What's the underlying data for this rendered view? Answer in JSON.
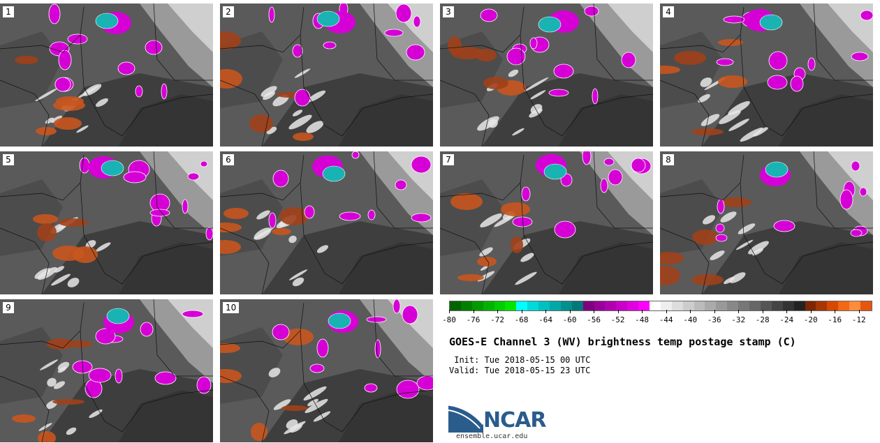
{
  "panels": [
    {
      "label": "1"
    },
    {
      "label": "2"
    },
    {
      "label": "3"
    },
    {
      "label": "4"
    },
    {
      "label": "5"
    },
    {
      "label": "6"
    },
    {
      "label": "7"
    },
    {
      "label": "8"
    },
    {
      "label": "9"
    },
    {
      "label": "10"
    }
  ],
  "colorbar": {
    "colors": [
      "#006400",
      "#007f00",
      "#009900",
      "#00b300",
      "#00cc00",
      "#00e500",
      "#00ffff",
      "#00dada",
      "#00c0c0",
      "#00a8a8",
      "#009090",
      "#007878",
      "#800080",
      "#990099",
      "#b000b0",
      "#c800c8",
      "#e000e0",
      "#ff00ff",
      "#ffffff",
      "#eeeeee",
      "#dddddd",
      "#cccccc",
      "#bbbbbb",
      "#aaaaaa",
      "#999999",
      "#888888",
      "#777777",
      "#666666",
      "#555555",
      "#444444",
      "#333333",
      "#222222",
      "#7f2704",
      "#a63603",
      "#d94801",
      "#f16913",
      "#fd8d3c",
      "#e6550d"
    ],
    "ticks": [
      "-80",
      "-76",
      "-72",
      "-68",
      "-64",
      "-60",
      "-56",
      "-52",
      "-48",
      "-44",
      "-40",
      "-36",
      "-32",
      "-28",
      "-24",
      "-20",
      "-16",
      "-12"
    ],
    "min": -80,
    "max": -10
  },
  "title": "GOES-E Channel 3 (WV) brightness temp postage stamp (C)",
  "init": " Init: Tue 2018-05-15 00 UTC",
  "valid": "Valid: Tue 2018-05-15 23 UTC",
  "logo": {
    "text": "NCAR",
    "url": "ensemble.ucar.edu"
  }
}
